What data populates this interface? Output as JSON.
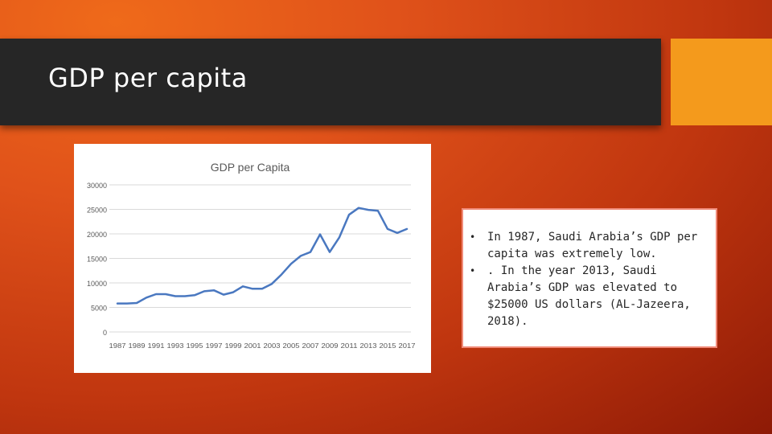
{
  "slide": {
    "title": "GDP per capita",
    "bullets": [
      "In 1987, Saudi Arabia’s GDP per capita was extremely low.",
      ". In the year 2013, Saudi Arabia’s GDP was elevated to $25000 US dollars (AL-Jazeera, 2018)."
    ]
  },
  "colors": {
    "title_bar": "#262626",
    "accent": "#f49a1c",
    "line": "#4a78c0",
    "card_border": "#f08a78"
  },
  "chart_data": {
    "type": "line",
    "title": "GDP per Capita",
    "xlabel": "",
    "ylabel": "",
    "ylim": [
      0,
      30000
    ],
    "yticks": [
      0,
      5000,
      10000,
      15000,
      20000,
      25000,
      30000
    ],
    "xtick_labels": [
      "1987",
      "1989",
      "1991",
      "1993",
      "1995",
      "1997",
      "1999",
      "2001",
      "2003",
      "2005",
      "2007",
      "2009",
      "2011",
      "2013",
      "2015",
      "2017"
    ],
    "grid": true,
    "legend": "none",
    "series": [
      {
        "x": [
          1987,
          1988,
          1989,
          1990,
          1991,
          1992,
          1993,
          1994,
          1995,
          1996,
          1997,
          1998,
          1999,
          2000,
          2001,
          2002,
          2003,
          2004,
          2005,
          2006,
          2007,
          2008,
          2009,
          2010,
          2011,
          2012,
          2013,
          2014,
          2015,
          2016,
          2017
        ],
        "values": [
          5800,
          5800,
          5900,
          7000,
          7700,
          7700,
          7300,
          7300,
          7500,
          8300,
          8500,
          7600,
          8100,
          9300,
          8800,
          8800,
          9800,
          11700,
          13900,
          15500,
          16300,
          19900,
          16300,
          19300,
          23900,
          25300,
          24900,
          24700,
          21000,
          20200,
          21000
        ]
      }
    ]
  }
}
